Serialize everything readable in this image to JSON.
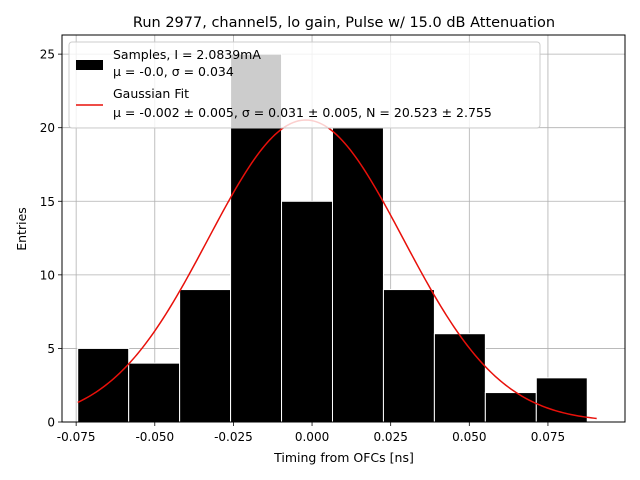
{
  "chart_data": {
    "type": "bar",
    "title": "Run 2977, channel5, lo gain, Pulse w/ 15.0 dB Attenuation",
    "xlabel": "Timing from OFCs [ns]",
    "ylabel": "Entries",
    "xlim": [
      -0.0795,
      0.0995
    ],
    "ylim": [
      0,
      26.3
    ],
    "grid": true,
    "legend_position": "upper-left",
    "x_ticks": [
      "-0.075",
      "-0.050",
      "-0.025",
      "0.000",
      "0.025",
      "0.050",
      "0.075"
    ],
    "y_ticks": [
      "0",
      "5",
      "10",
      "15",
      "20",
      "25"
    ],
    "bin_edges": [
      -0.0745,
      -0.0583,
      -0.0421,
      -0.0259,
      -0.0097,
      0.0065,
      0.0227,
      0.0389,
      0.0551,
      0.0713,
      0.0875
    ],
    "values": [
      5,
      4,
      9,
      25,
      15,
      20,
      9,
      6,
      2,
      3
    ],
    "series": [
      {
        "name": "Samples, I = 2.0839mA",
        "name_line2": "μ = -0.0, σ = 0.034",
        "kind": "histogram",
        "color": "#000000",
        "edge_color": "#ffffff"
      },
      {
        "name": "Gaussian Fit",
        "name_line2": "μ = -0.002 ± 0.005, σ = 0.031 ± 0.005, N = 20.523 ± 2.755",
        "kind": "line",
        "color": "#e8100a",
        "mu": -0.002,
        "sigma": 0.031,
        "N": 20.523,
        "x_range": [
          -0.0745,
          0.0905
        ]
      }
    ]
  }
}
